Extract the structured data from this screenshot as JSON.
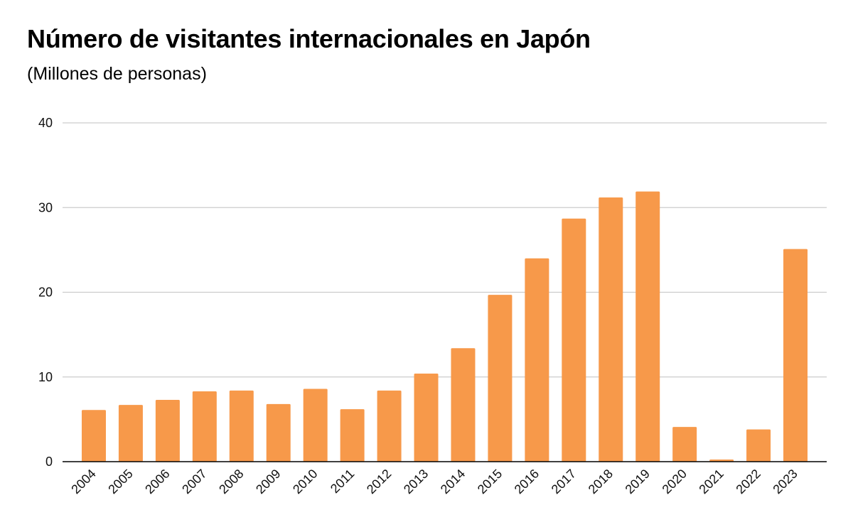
{
  "chart_data": {
    "type": "bar",
    "title": "Número de visitantes internacionales en Japón",
    "subtitle": "(Millones de personas)",
    "xlabel": "",
    "ylabel": "",
    "categories": [
      "2004",
      "2005",
      "2006",
      "2007",
      "2008",
      "2009",
      "2010",
      "2011",
      "2012",
      "2013",
      "2014",
      "2015",
      "2016",
      "2017",
      "2018",
      "2019",
      "2020",
      "2021",
      "2022",
      "2023"
    ],
    "values": [
      6.1,
      6.7,
      7.3,
      8.3,
      8.4,
      6.8,
      8.6,
      6.2,
      8.4,
      10.4,
      13.4,
      19.7,
      24.0,
      28.7,
      31.2,
      31.9,
      4.1,
      0.25,
      3.8,
      25.1
    ],
    "ylim": [
      0,
      40
    ],
    "yticks": [
      0,
      10,
      20,
      30,
      40
    ],
    "grid": true,
    "legend": "none",
    "bar_color": "#F7994A",
    "grid_color": "#cccccc",
    "axis_color": "#000000"
  }
}
